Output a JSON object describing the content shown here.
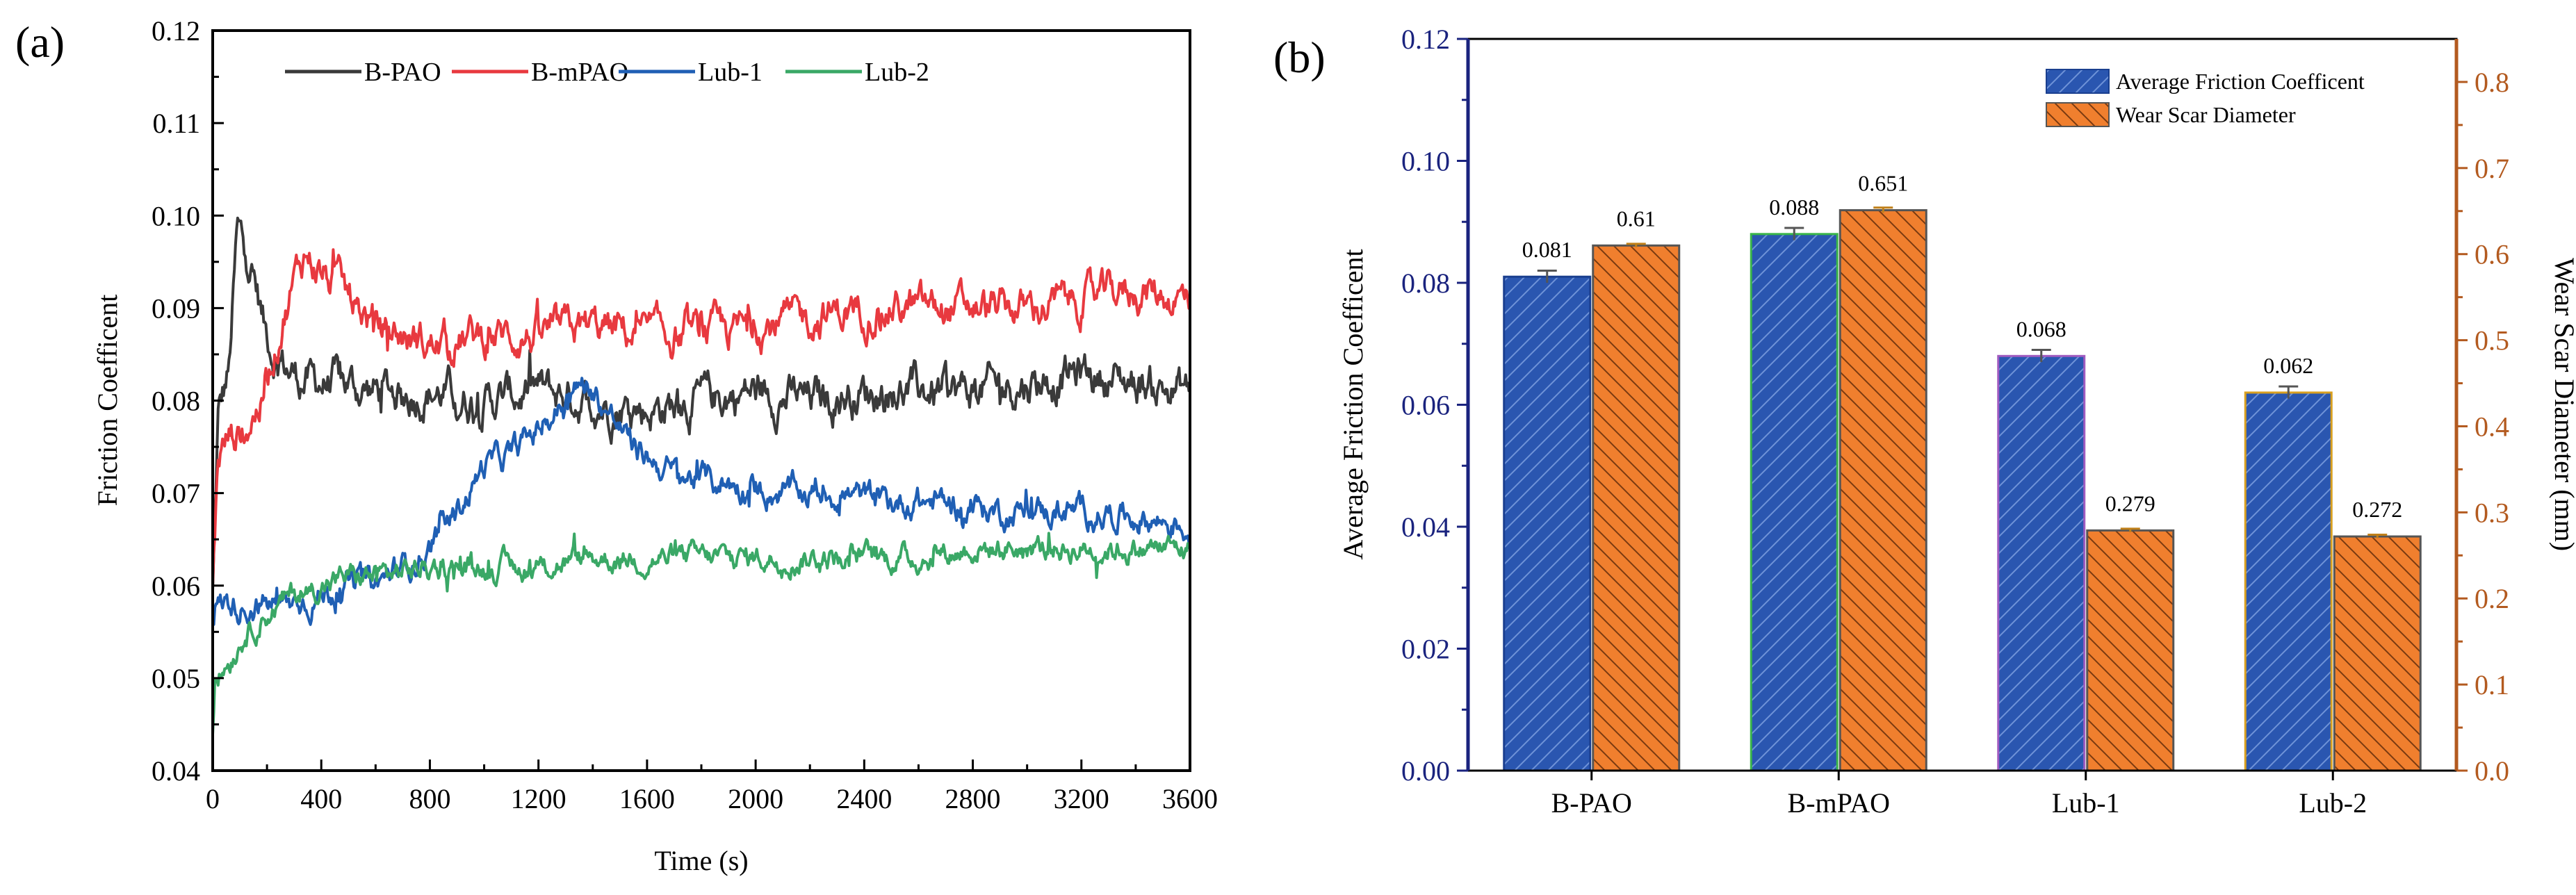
{
  "chart_data": [
    {
      "panel": "(a)",
      "type": "line",
      "xlabel": "Time (s)",
      "ylabel": "Friction Coefficent",
      "xlim": [
        0,
        3600
      ],
      "ylim": [
        0.04,
        0.12
      ],
      "xticks": [
        "0",
        "400",
        "800",
        "1200",
        "1600",
        "2000",
        "2400",
        "2800",
        "3200",
        "3600"
      ],
      "yticks": [
        "0.04",
        "0.05",
        "0.06",
        "0.07",
        "0.08",
        "0.09",
        "0.10",
        "0.11",
        "0.12"
      ],
      "legend_position": "top",
      "series": [
        {
          "name": "B-PAO",
          "color": "#3a3a3a",
          "noise": 0.0022,
          "x": [
            0,
            20,
            60,
            90,
            110,
            150,
            190,
            230,
            290,
            360,
            450,
            600,
            800,
            1000,
            1200,
            1400,
            1600,
            1800,
            2000,
            2200,
            2400,
            2600,
            2800,
            3000,
            3200,
            3400,
            3600
          ],
          "y": [
            0.059,
            0.078,
            0.083,
            0.098,
            0.097,
            0.094,
            0.088,
            0.085,
            0.083,
            0.082,
            0.082,
            0.081,
            0.081,
            0.08,
            0.081,
            0.08,
            0.079,
            0.08,
            0.081,
            0.08,
            0.081,
            0.081,
            0.081,
            0.082,
            0.083,
            0.082,
            0.081
          ]
        },
        {
          "name": "B-mPAO",
          "color": "#e8393f",
          "noise": 0.002,
          "x": [
            0,
            20,
            60,
            120,
            180,
            240,
            300,
            340,
            400,
            500,
            600,
            800,
            1000,
            1200,
            1400,
            1600,
            1800,
            2000,
            2200,
            2400,
            2600,
            2800,
            3000,
            3200,
            3400,
            3600
          ],
          "y": [
            0.06,
            0.074,
            0.076,
            0.077,
            0.08,
            0.087,
            0.093,
            0.096,
            0.094,
            0.091,
            0.088,
            0.086,
            0.087,
            0.087,
            0.088,
            0.087,
            0.087,
            0.088,
            0.089,
            0.09,
            0.09,
            0.09,
            0.09,
            0.091,
            0.092,
            0.091
          ]
        },
        {
          "name": "Lub-1",
          "color": "#1f5fb4",
          "noise": 0.0015,
          "x": [
            0,
            10,
            100,
            200,
            300,
            400,
            500,
            600,
            700,
            800,
            900,
            1000,
            1100,
            1200,
            1300,
            1380,
            1450,
            1550,
            1700,
            1900,
            2100,
            2300,
            2500,
            2700,
            2900,
            3100,
            3300,
            3500,
            3600
          ],
          "y": [
            0.056,
            0.058,
            0.058,
            0.058,
            0.058,
            0.059,
            0.06,
            0.06,
            0.062,
            0.064,
            0.068,
            0.073,
            0.074,
            0.077,
            0.08,
            0.082,
            0.079,
            0.075,
            0.072,
            0.071,
            0.07,
            0.07,
            0.069,
            0.069,
            0.068,
            0.068,
            0.068,
            0.067,
            0.066
          ]
        },
        {
          "name": "Lub-2",
          "color": "#3aa866",
          "noise": 0.0013,
          "x": [
            0,
            10,
            60,
            120,
            200,
            300,
            400,
            500,
            600,
            800,
            1000,
            1200,
            1400,
            1600,
            1800,
            2000,
            2200,
            2400,
            2600,
            2800,
            3000,
            3200,
            3400,
            3600
          ],
          "y": [
            0.044,
            0.05,
            0.052,
            0.055,
            0.057,
            0.059,
            0.06,
            0.061,
            0.061,
            0.062,
            0.062,
            0.062,
            0.063,
            0.063,
            0.063,
            0.063,
            0.063,
            0.063,
            0.063,
            0.064,
            0.064,
            0.064,
            0.064,
            0.064
          ]
        }
      ]
    },
    {
      "panel": "(b)",
      "type": "bar",
      "categories": [
        "B-PAO",
        "B-mPAO",
        "Lub-1",
        "Lub-2"
      ],
      "ylabel": "Average Friction Coefficent",
      "y2label": "Wear Scar Diameter (mm)",
      "ylim": [
        0,
        0.12
      ],
      "y2lim": [
        0,
        0.85
      ],
      "yticks": [
        "0.00",
        "0.02",
        "0.04",
        "0.06",
        "0.08",
        "0.10",
        "0.12"
      ],
      "y2ticks": [
        "0.0",
        "0.1",
        "0.2",
        "0.3",
        "0.4",
        "0.5",
        "0.6",
        "0.7",
        "0.8"
      ],
      "legend_position": "top-right",
      "series": [
        {
          "name": "Average Friction Coefficent",
          "axis": "left",
          "color": "#2a56b0",
          "values": [
            0.081,
            0.088,
            0.068,
            0.062
          ],
          "labels": [
            "0.081",
            "0.088",
            "0.068",
            "0.062"
          ],
          "errors": [
            0.001,
            0.001,
            0.001,
            0.001
          ],
          "edge_colors": [
            "#1a3f8f",
            "#3ab54a",
            "#a05bc0",
            "#d9a020"
          ]
        },
        {
          "name": "Wear Scar Diameter",
          "axis": "right",
          "color": "#f07f2e",
          "values": [
            0.61,
            0.651,
            0.279,
            0.272
          ],
          "labels": [
            "0.61",
            "0.651",
            "0.279",
            "0.272"
          ],
          "errors": [
            0.002,
            0.003,
            0.002,
            0.002
          ],
          "edge_colors": [
            "#555555",
            "#555555",
            "#555555",
            "#555555"
          ]
        }
      ],
      "left_axis_color": "#1a237e",
      "right_axis_color": "#b35a1f"
    }
  ]
}
